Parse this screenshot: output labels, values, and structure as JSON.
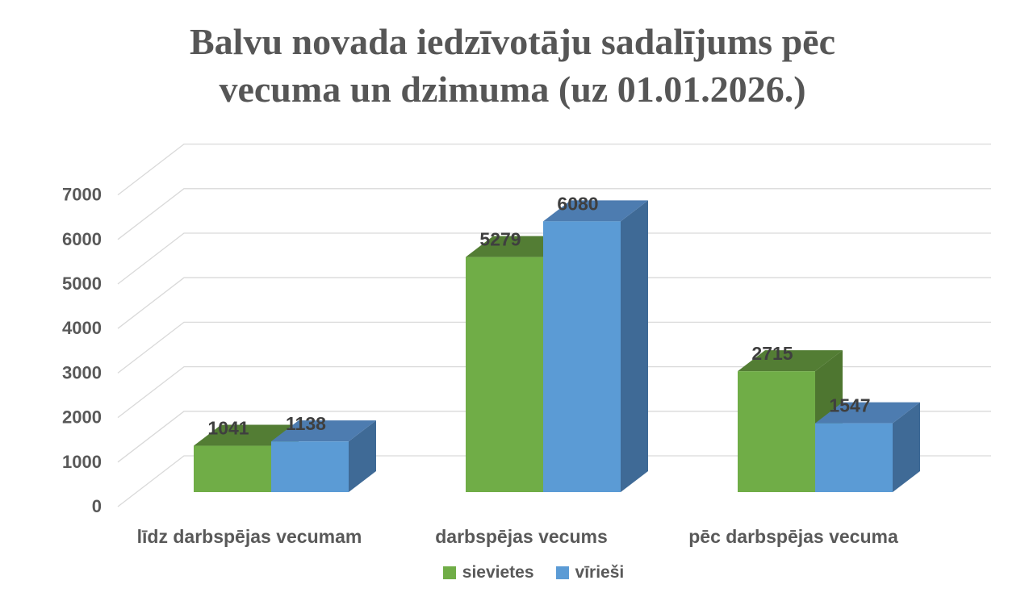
{
  "chart_data": {
    "type": "bar",
    "variant": "3d-clustered-column",
    "title": "Balvu novada iedzīvotāju sadalījums pēc vecuma un dzimuma (uz 01.01.2026.)",
    "title_lines": [
      "Balvu novada iedzīvotāju sadalījums pēc",
      "vecuma un dzimuma (uz 01.01.2026.)"
    ],
    "categories": [
      "līdz darbspējas vecumam",
      "darbspējas vecums",
      "pēc darbspējas vecuma"
    ],
    "series": [
      {
        "name": "sievietes",
        "values": [
          1041,
          5279,
          2715
        ],
        "color": "#70AD47",
        "top_color": "#537D34",
        "side_color": "#4E7630"
      },
      {
        "name": "vīrieši",
        "values": [
          1138,
          6080,
          1547
        ],
        "color": "#5B9BD5",
        "top_color": "#4D7CB0",
        "side_color": "#3F6A96"
      }
    ],
    "y_axis": {
      "min": 0,
      "max": 7000,
      "step": 1000,
      "tick_labels": [
        "0",
        "1000",
        "2000",
        "3000",
        "4000",
        "5000",
        "6000",
        "7000"
      ]
    },
    "grid": true,
    "grid_color": "#d9d9d9",
    "text_color": "#595959",
    "value_label_color": "#3f3f3f",
    "title_color": "#565656",
    "legend_position": "bottom",
    "xlabel": "",
    "ylabel": ""
  }
}
